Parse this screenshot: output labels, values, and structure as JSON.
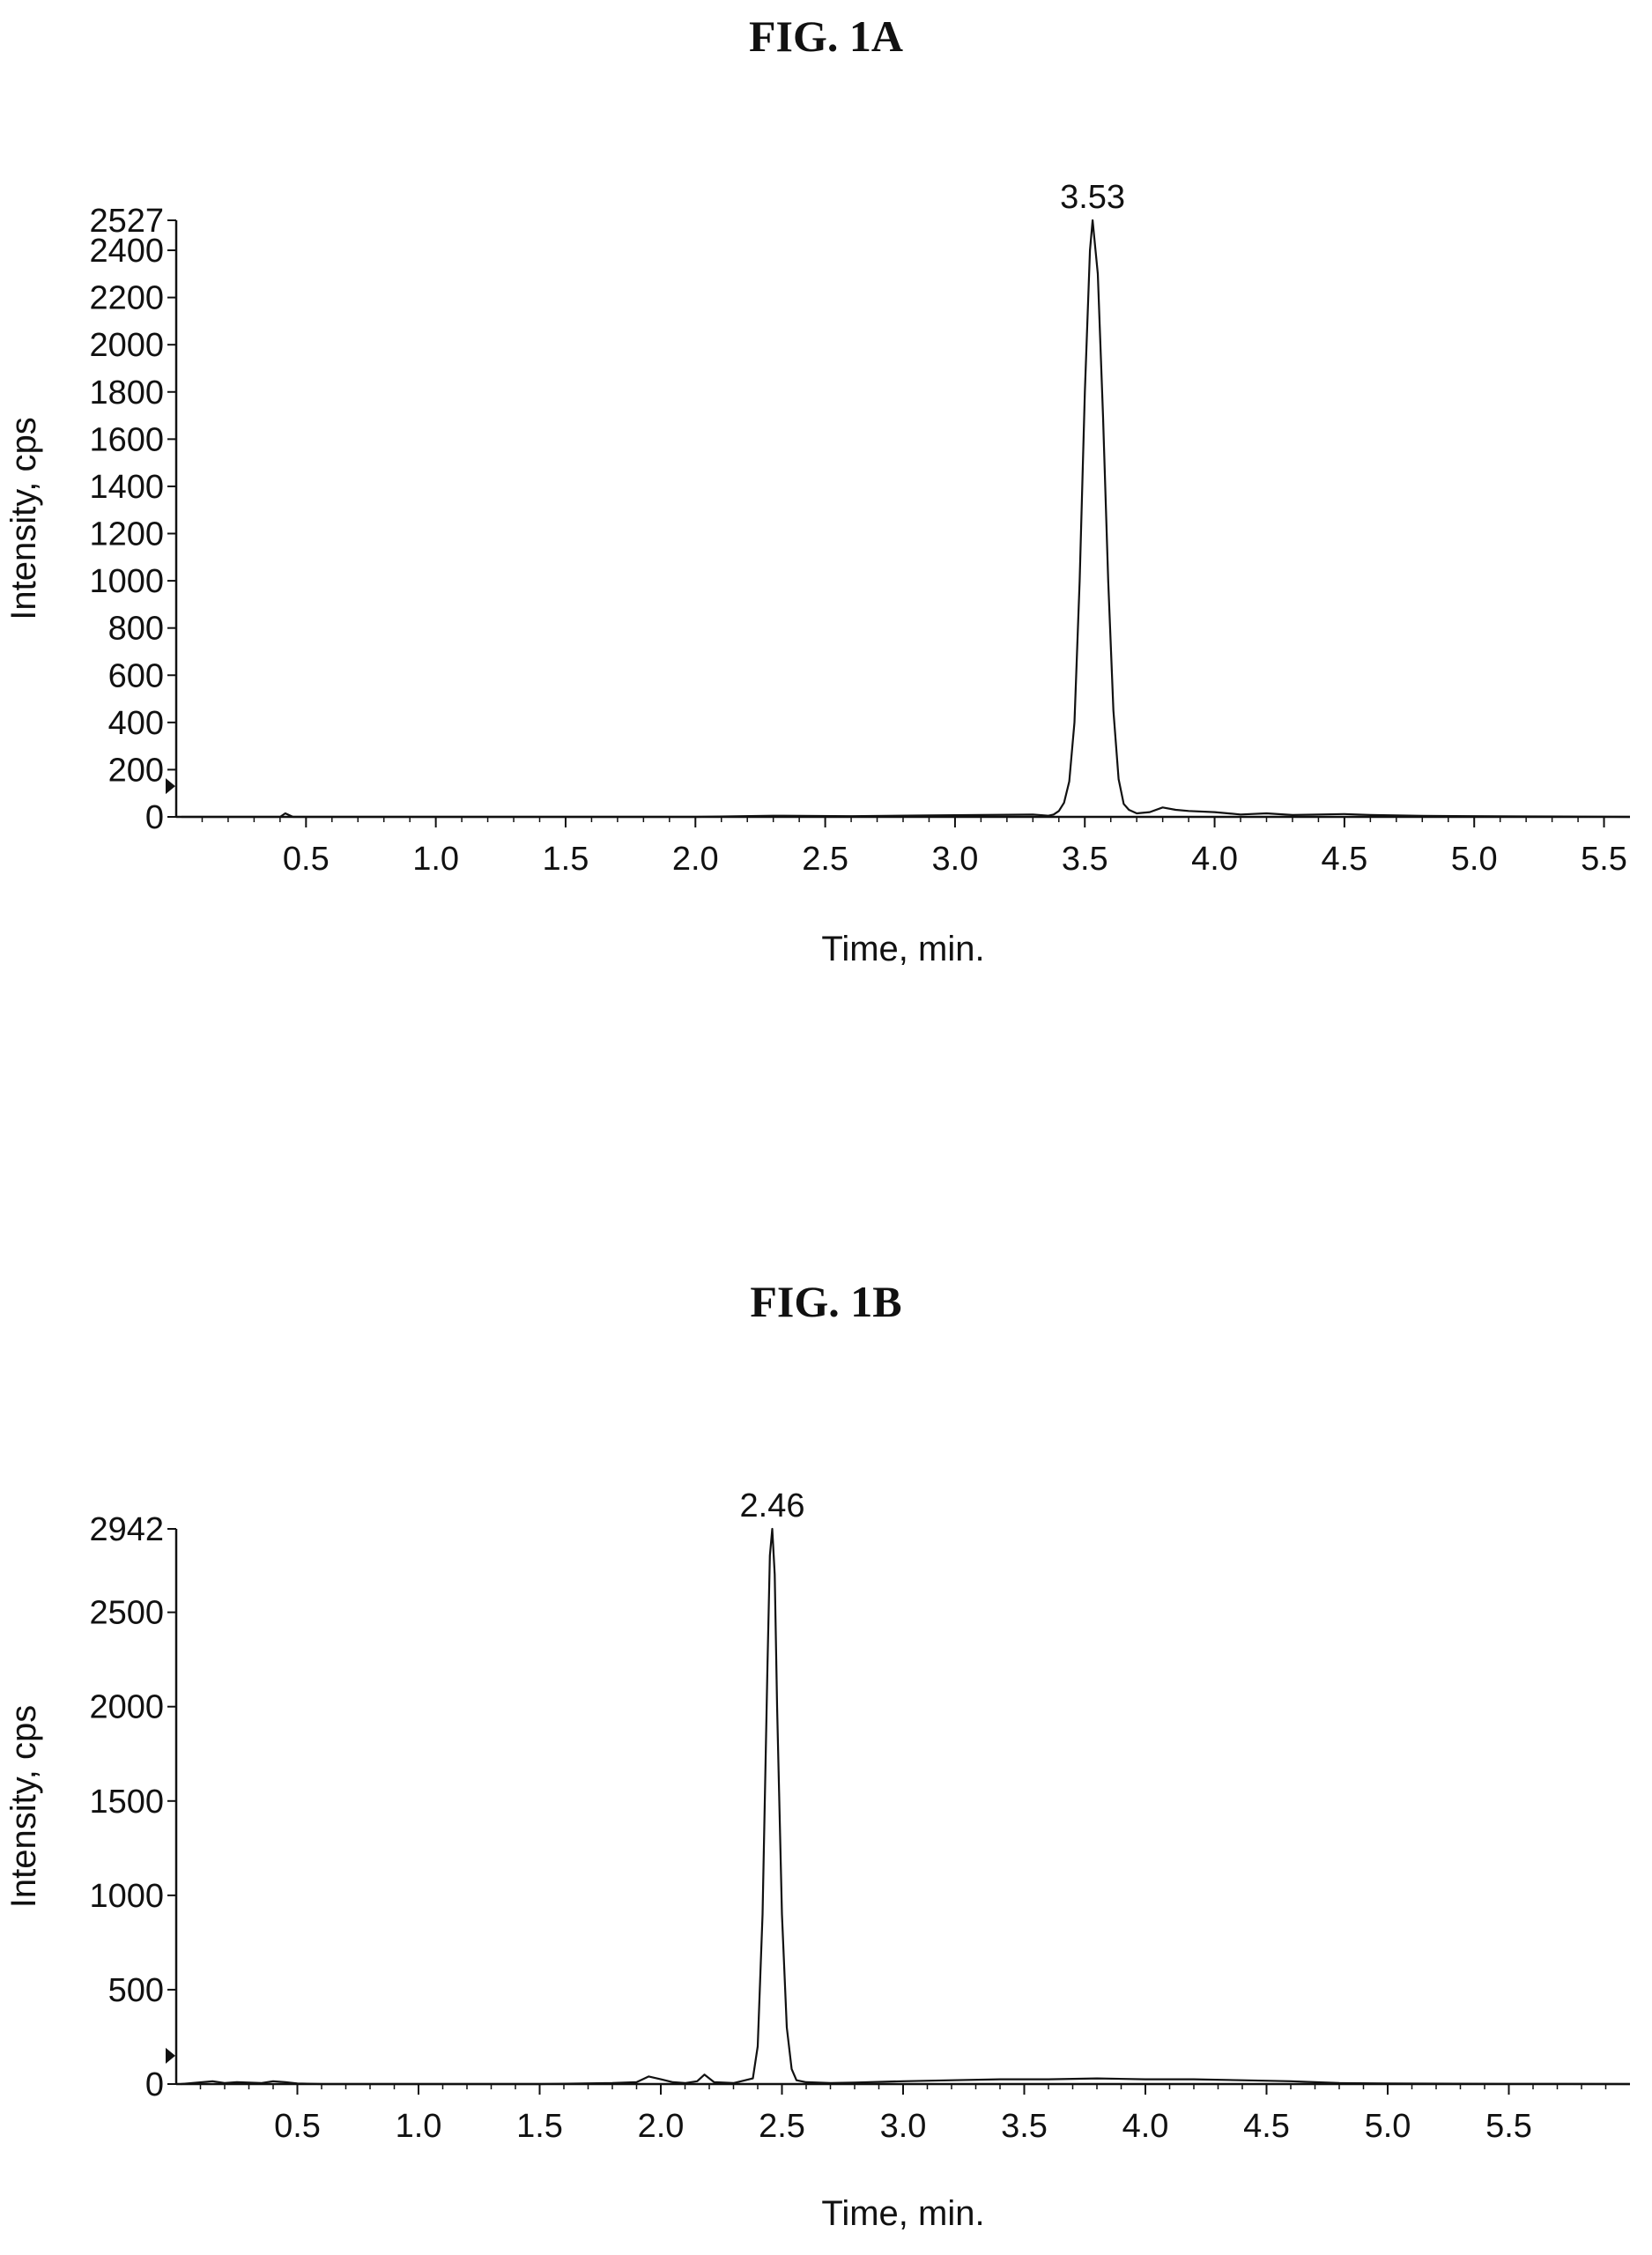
{
  "chart_data": [
    {
      "type": "line",
      "title": "FIG. 1A",
      "xlabel": "Time, min.",
      "ylabel": "Intensity, cps",
      "xlim": [
        0,
        5.6
      ],
      "ylim": [
        0,
        2527
      ],
      "xticks": [
        "0.5",
        "1.0",
        "1.5",
        "2.0",
        "2.5",
        "3.0",
        "3.5",
        "4.0",
        "4.5",
        "5.0",
        "5.5"
      ],
      "xtick_values": [
        0.5,
        1.0,
        1.5,
        2.0,
        2.5,
        3.0,
        3.5,
        4.0,
        4.5,
        5.0,
        5.5
      ],
      "yticks": [
        "0",
        "200",
        "400",
        "600",
        "800",
        "1000",
        "1200",
        "1400",
        "1600",
        "1800",
        "2000",
        "2200",
        "2400",
        "2527"
      ],
      "ytick_values": [
        0,
        200,
        400,
        600,
        800,
        1000,
        1200,
        1400,
        1600,
        1800,
        2000,
        2200,
        2400,
        2527
      ],
      "annotations": [
        {
          "text": "3.53",
          "x": 3.53,
          "y": 2527
        }
      ],
      "marker_y": 130,
      "series": [
        {
          "x": [
            0.02,
            0.4,
            0.42,
            0.45,
            1.0,
            2.0,
            2.3,
            2.6,
            2.9,
            3.1,
            3.3,
            3.36,
            3.38,
            3.4,
            3.42,
            3.44,
            3.46,
            3.48,
            3.5,
            3.52,
            3.53,
            3.55,
            3.57,
            3.59,
            3.61,
            3.63,
            3.65,
            3.67,
            3.7,
            3.75,
            3.8,
            3.85,
            3.9,
            4.0,
            4.1,
            4.2,
            4.3,
            4.4,
            4.5,
            4.6,
            4.7,
            4.8,
            5.0,
            5.2,
            5.4,
            5.6
          ],
          "y": [
            0,
            0,
            15,
            0,
            0,
            0,
            5,
            3,
            6,
            8,
            10,
            5,
            10,
            25,
            60,
            150,
            400,
            1000,
            1800,
            2400,
            2527,
            2300,
            1700,
            1000,
            450,
            160,
            55,
            30,
            15,
            20,
            40,
            30,
            25,
            20,
            10,
            15,
            8,
            10,
            12,
            8,
            6,
            4,
            3,
            2,
            1,
            0
          ]
        }
      ]
    },
    {
      "type": "line",
      "title": "FIG. 1B",
      "xlabel": "Time, min.",
      "ylabel": "Intensity, cps",
      "xlim": [
        0,
        6.0
      ],
      "ylim": [
        0,
        2942
      ],
      "xticks": [
        "0.5",
        "1.0",
        "1.5",
        "2.0",
        "2.5",
        "3.0",
        "3.5",
        "4.0",
        "4.5",
        "5.0",
        "5.5"
      ],
      "xtick_values": [
        0.5,
        1.0,
        1.5,
        2.0,
        2.5,
        3.0,
        3.5,
        4.0,
        4.5,
        5.0,
        5.5
      ],
      "yticks": [
        "0",
        "500",
        "1000",
        "1500",
        "2000",
        "2500",
        "2942"
      ],
      "ytick_values": [
        0,
        500,
        1000,
        1500,
        2000,
        2500,
        2942
      ],
      "annotations": [
        {
          "text": "2.46",
          "x": 2.46,
          "y": 2942
        }
      ],
      "marker_y": 150,
      "series": [
        {
          "x": [
            0.02,
            0.15,
            0.2,
            0.25,
            0.35,
            0.4,
            0.45,
            0.5,
            0.6,
            1.0,
            1.5,
            1.8,
            1.9,
            1.95,
            2.0,
            2.05,
            2.1,
            2.15,
            2.18,
            2.22,
            2.3,
            2.38,
            2.4,
            2.42,
            2.44,
            2.45,
            2.46,
            2.47,
            2.48,
            2.5,
            2.52,
            2.54,
            2.56,
            2.6,
            2.7,
            2.8,
            3.0,
            3.2,
            3.4,
            3.6,
            3.8,
            4.0,
            4.2,
            4.4,
            4.6,
            4.7,
            4.8,
            5.0,
            5.5,
            6.0
          ],
          "y": [
            0,
            15,
            5,
            10,
            5,
            15,
            10,
            3,
            0,
            0,
            0,
            5,
            10,
            40,
            25,
            10,
            5,
            15,
            50,
            10,
            5,
            30,
            200,
            900,
            2200,
            2800,
            2942,
            2700,
            2000,
            900,
            300,
            80,
            20,
            10,
            5,
            8,
            15,
            20,
            25,
            25,
            30,
            25,
            25,
            20,
            15,
            10,
            5,
            3,
            1,
            0
          ]
        }
      ]
    }
  ]
}
